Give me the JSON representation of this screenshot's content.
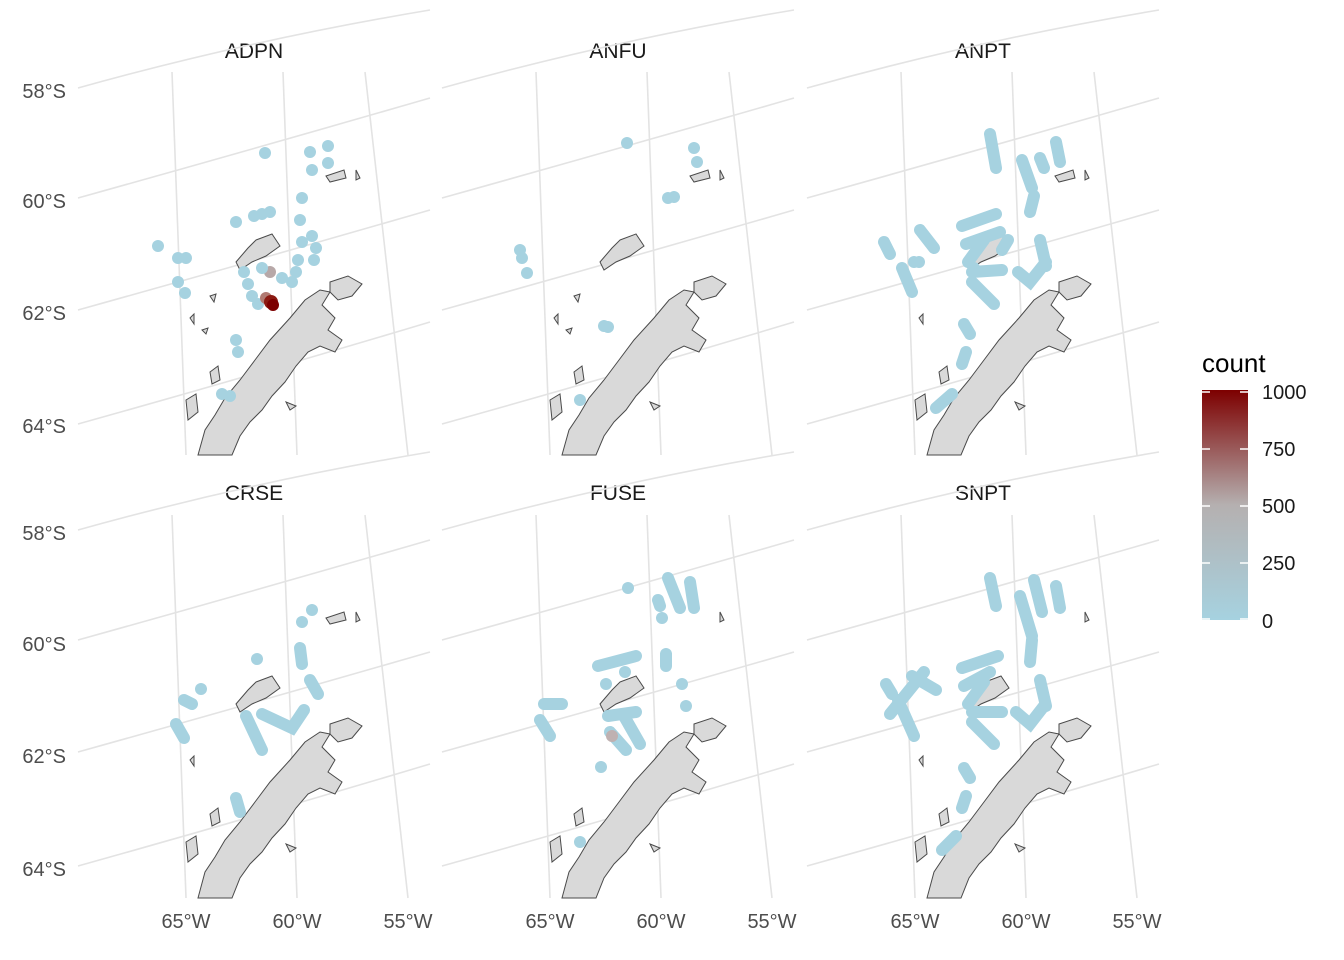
{
  "panels": [
    {
      "title": "ADPN"
    },
    {
      "title": "ANFU"
    },
    {
      "title": "ANPT"
    },
    {
      "title": "CRSE"
    },
    {
      "title": "FUSE"
    },
    {
      "title": "SNPT"
    }
  ],
  "axes": {
    "lat_ticks": [
      "58°S",
      "60°S",
      "62°S",
      "64°S"
    ],
    "lon_ticks": [
      "65°W",
      "60°W",
      "55°W"
    ]
  },
  "legend": {
    "title": "count",
    "ticks": [
      "1000",
      "750",
      "500",
      "250",
      "0"
    ],
    "colors": {
      "low": "#a6d2e0",
      "mid": "#b5b0b0",
      "high": "#7d0000"
    }
  },
  "colors": {
    "land": "#d9d9d9",
    "coast": "#4a4a4a",
    "grid": "#e3e3e3",
    "point_low": "#a6d2e0"
  }
}
